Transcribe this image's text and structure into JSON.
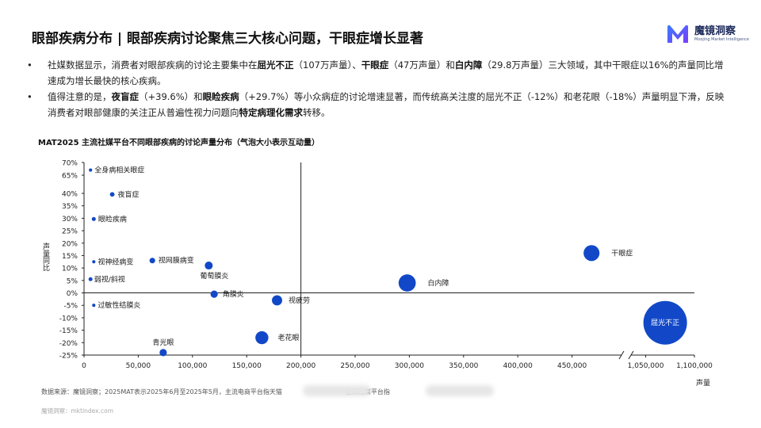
{
  "header": {
    "title": "眼部疾病分布 | 眼部疾病讨论聚焦三大核心问题，干眼症增长显著",
    "logo_cn": "魔镜洞察",
    "logo_en": "Moojing Market Intelligence"
  },
  "bullets": [
    {
      "marker": "•",
      "p1": "社媒数据显示，消费者对眼部疾病的讨论主要集中在",
      "b1": "屈光不正",
      "p2": "（107万声量）、",
      "b2": "干眼症",
      "p3": "（47万声量）和",
      "b3": "白内障",
      "p4": "（29.8万声量）三大领域，其中干眼症以16%的声量同比增速成为增长最快的核心疾病。"
    },
    {
      "marker": "•",
      "p1": "值得注意的是，",
      "b1": "夜盲症",
      "p2": "（+39.6%）和",
      "b2": "眼睑疾病",
      "p3": "（+29.7%）等小众病症的讨论增速显著，而传统高关注度的屈光不正（-12%）和老花眼（-18%）声量明显下滑，反映消费者对眼部健康的关注正从普遍性视力问题向",
      "b3": "特定病理化需求",
      "p4": "转移。"
    }
  ],
  "chart_title": "MAT2025 主流社媒平台不同眼部疾病的讨论声量分布（气泡大小表示互动量）",
  "chart_data": {
    "type": "scatter",
    "bubble": true,
    "xlabel": "声量",
    "ylabel": "声量同比",
    "x_ticks": [
      0,
      50000,
      100000,
      150000,
      200000,
      250000,
      300000,
      350000,
      400000,
      450000,
      1050000,
      1100000
    ],
    "x_tick_labels": [
      "0",
      "50,000",
      "100,000",
      "150,000",
      "200,000",
      "250,000",
      "300,000",
      "350,000",
      "400,000",
      "450,000",
      "1,050,000",
      "1,100,000"
    ],
    "x_axis_break": [
      480000,
      1030000
    ],
    "y_ticks": [
      -25,
      -20,
      -15,
      -10,
      -5,
      0,
      5,
      10,
      15,
      20,
      25,
      30,
      35,
      40,
      65,
      70
    ],
    "y_tick_labels": [
      "-25%",
      "-20%",
      "-15%",
      "-10%",
      "-5%",
      "0%",
      "5%",
      "10%",
      "15%",
      "20%",
      "25%",
      "30%",
      "35%",
      "40%",
      "65%",
      "70%"
    ],
    "y_axis_break": [
      42,
      63
    ],
    "color": "#1248c8",
    "points": [
      {
        "name": "全身病相关眼症",
        "x": 6000,
        "y": 67,
        "size": 1
      },
      {
        "name": "夜盲症",
        "x": 26000,
        "y": 39.6,
        "size": 2
      },
      {
        "name": "眼睑疾病",
        "x": 9000,
        "y": 29.7,
        "size": 1.5
      },
      {
        "name": "视网膜病变",
        "x": 63000,
        "y": 13,
        "size": 3
      },
      {
        "name": "视神经病变",
        "x": 9000,
        "y": 12.5,
        "size": 1
      },
      {
        "name": "葡萄膜炎",
        "x": 115000,
        "y": 11,
        "size": 6
      },
      {
        "name": "弱视/斜视",
        "x": 6000,
        "y": 5.5,
        "size": 1.5
      },
      {
        "name": "角膜炎",
        "x": 120000,
        "y": -0.5,
        "size": 5
      },
      {
        "name": "过敏性结膜炎",
        "x": 9000,
        "y": -5,
        "size": 1
      },
      {
        "name": "视疲劳",
        "x": 178000,
        "y": -3,
        "size": 10
      },
      {
        "name": "白内障",
        "x": 298000,
        "y": 4,
        "size": 28
      },
      {
        "name": "干眼症",
        "x": 468000,
        "y": 16,
        "size": 24
      },
      {
        "name": "屈光不正",
        "x": 1070000,
        "y": -12,
        "size": 180
      },
      {
        "name": "老花眼",
        "x": 164000,
        "y": -18,
        "size": 16
      },
      {
        "name": "青光眼",
        "x": 73000,
        "y": -24,
        "size": 5
      }
    ]
  },
  "source": "数据来源：魔镜洞察；2025MAT表示2025年6月至2025年5月，主流电商平台指天猫　　　　　　　　　　主流社媒平台指",
  "footer": "魔镜洞察：mktindex.com"
}
